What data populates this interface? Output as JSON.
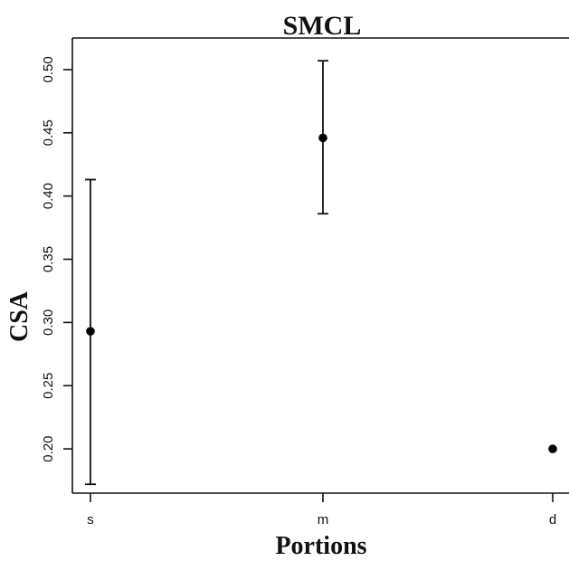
{
  "chart_data": {
    "type": "scatter",
    "title": "SMCL",
    "xlabel": "Portions",
    "ylabel": "CSA",
    "categories": [
      "s",
      "m",
      "d"
    ],
    "series": [
      {
        "values": [
          0.293,
          0.446,
          0.2
        ],
        "error_low": [
          0.172,
          0.386,
          null
        ],
        "error_high": [
          0.413,
          0.507,
          null
        ]
      }
    ],
    "y_ticks": [
      "0.20",
      "0.25",
      "0.30",
      "0.35",
      "0.40",
      "0.45",
      "0.50"
    ],
    "ylim": [
      0.165,
      0.525
    ],
    "grid": false,
    "legend": "none"
  }
}
